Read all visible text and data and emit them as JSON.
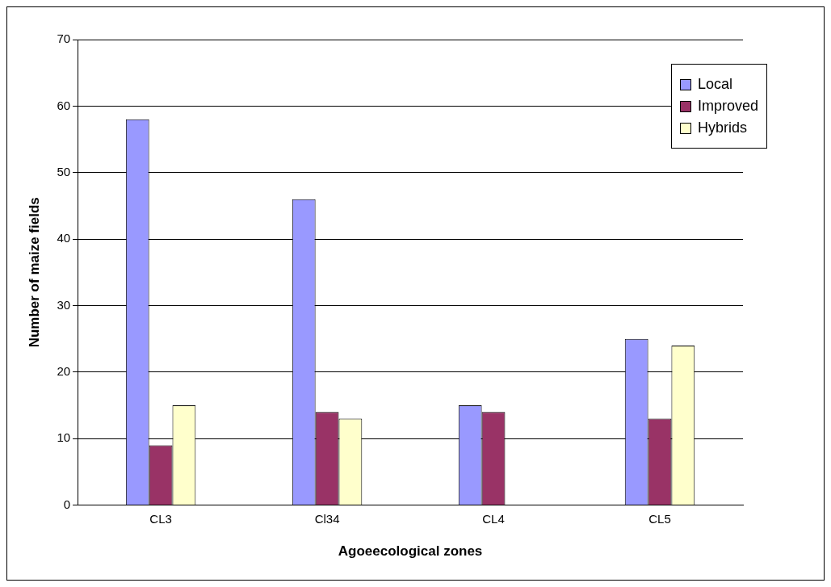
{
  "chart_data": {
    "type": "bar",
    "xlabel": "Agoeecological zones",
    "ylabel": "Number of maize fields",
    "categories": [
      "CL3",
      "Cl34",
      "CL4",
      "CL5"
    ],
    "series": [
      {
        "name": "Local",
        "color": "#9999ff",
        "values": [
          58,
          46,
          15,
          25
        ]
      },
      {
        "name": "Improved",
        "color": "#993366",
        "values": [
          9,
          14,
          14,
          13
        ]
      },
      {
        "name": "Hybrids",
        "color": "#ffffcc",
        "values": [
          15,
          13,
          0,
          24
        ]
      }
    ],
    "ylim": [
      0,
      70
    ],
    "yticks": [
      0,
      10,
      20,
      30,
      40,
      50,
      60,
      70
    ],
    "grid": "y",
    "legend": "top right"
  }
}
